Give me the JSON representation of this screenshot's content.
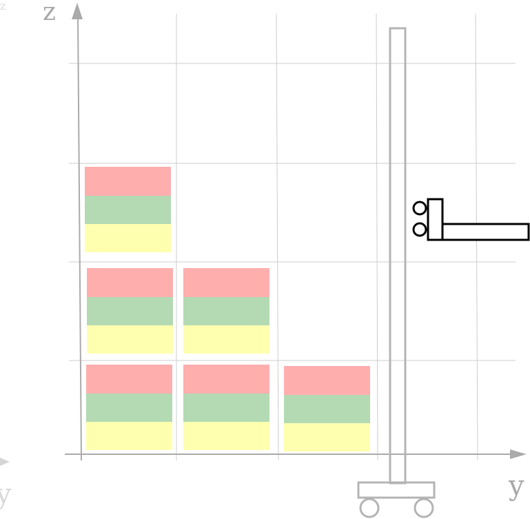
{
  "axes": {
    "z_label": "z",
    "y_label": "y",
    "faint_z_label": "z",
    "faint_y_label": "y",
    "axis_color": "#aaaaaa",
    "grid_color": "#cccccc"
  },
  "box_colors": {
    "top": "#ffaeae",
    "middle": "#b3dab3",
    "bottom": "#ffffb0"
  },
  "lift": {
    "mast_color": "#b4b4b4",
    "fork_color": "#000000"
  }
}
